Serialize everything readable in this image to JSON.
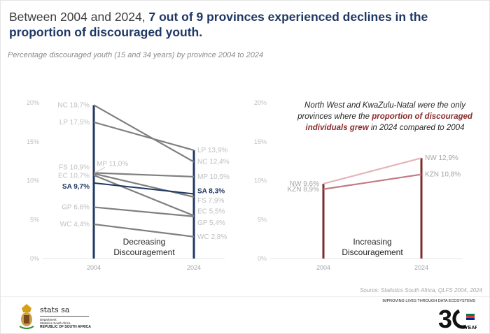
{
  "header": {
    "title_plain": "Between 2004 and 2024, ",
    "title_bold": "7 out of 9 provinces experienced declines in the proportion of discouraged youth.",
    "subtitle": "Percentage discouraged youth (15 and 34 years) by province 2004 to 2024"
  },
  "chart_data": [
    {
      "type": "line",
      "subtype": "slope",
      "categories": [
        "2004",
        "2024"
      ],
      "ylim": [
        0,
        20
      ],
      "yticks": [
        "0%",
        "5%",
        "10%",
        "15%",
        "20%"
      ],
      "annotation": [
        "Decreasing",
        "Discouragement"
      ],
      "colors": {
        "axis": "#1F3864",
        "lines": "#7f7f7f",
        "highlight": "#1F3864",
        "labels": "#bfbfbf"
      },
      "series": [
        {
          "name": "NC",
          "values": [
            19.7,
            12.4
          ],
          "labels": [
            "NC 19,7%",
            "NC 12,4%"
          ]
        },
        {
          "name": "LP",
          "values": [
            17.5,
            13.9
          ],
          "labels": [
            "LP 17,5%",
            "LP 13,9%"
          ]
        },
        {
          "name": "MP",
          "values": [
            11.0,
            10.5
          ],
          "labels": [
            "MP 11,0%",
            "MP 10,5%"
          ]
        },
        {
          "name": "FS",
          "values": [
            10.9,
            7.9
          ],
          "labels": [
            "FS 10,9%",
            "FS 7,9%"
          ]
        },
        {
          "name": "EC",
          "values": [
            10.7,
            5.5
          ],
          "labels": [
            "EC 10,7%",
            "EC 5,5%"
          ]
        },
        {
          "name": "GP",
          "values": [
            6.6,
            5.4
          ],
          "labels": [
            "GP 6,6%",
            "GP 5,4%"
          ]
        },
        {
          "name": "WC",
          "values": [
            4.4,
            2.8
          ],
          "labels": [
            "WC 4,4%",
            "WC 2,8%"
          ]
        },
        {
          "name": "SA",
          "values": [
            9.7,
            8.3
          ],
          "labels": [
            "SA 9,7%",
            "SA 8,3%"
          ],
          "highlight": true
        }
      ]
    },
    {
      "type": "line",
      "subtype": "slope",
      "categories": [
        "2004",
        "2024"
      ],
      "ylim": [
        0,
        20
      ],
      "yticks": [
        "0%",
        "5%",
        "10%",
        "15%",
        "20%"
      ],
      "annotation": [
        "Increasing",
        "Discouragement"
      ],
      "colors": {
        "axis": "#7B2C2C",
        "labels": "#a6a6a6"
      },
      "series": [
        {
          "name": "NW",
          "values": [
            9.6,
            12.9
          ],
          "labels": [
            "NW 9,6%",
            "NW 12,9%"
          ],
          "color": "#e6b3b8"
        },
        {
          "name": "KZN",
          "values": [
            8.9,
            10.8
          ],
          "labels": [
            "KZN 8,9%",
            "KZN 10,8%"
          ],
          "color": "#c47a82"
        }
      ]
    }
  ],
  "note": {
    "pre": "North West and KwaZulu-Natal were the only provinces where the ",
    "bold": "proportion of discouraged individuals grew",
    "post": " in 2024 compared to 2004"
  },
  "source": "Source: Statistics South Africa, QLFS 2004, 2024",
  "footer": {
    "brand": "stats sa",
    "dept1": "Department:",
    "dept2": "Statistics South Africa",
    "republic": "REPUBLIC OF SOUTH AFRICA",
    "tagline": "IMPROVING LIVES THROUGH DATA ECOSYSTEMS",
    "years_logo": "30 YEARS OF FREEDOM"
  }
}
